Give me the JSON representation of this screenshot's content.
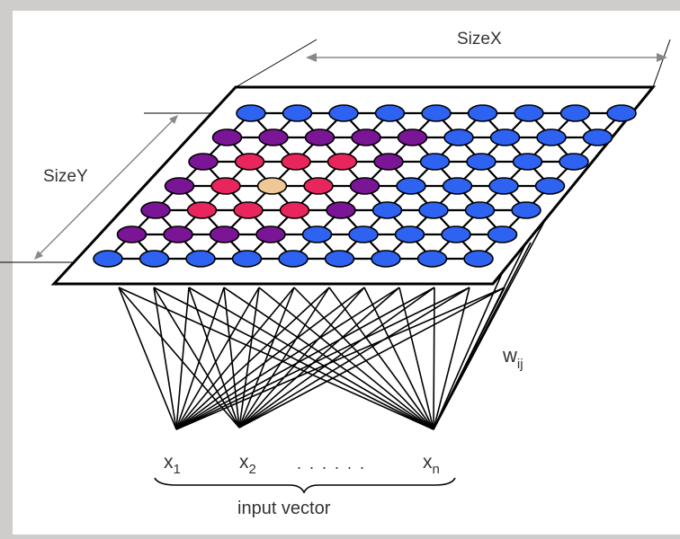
{
  "labels": {
    "size_x": "SizeX",
    "size_y": "SizeY",
    "weight": "w",
    "weight_sub": "ij",
    "caption": "input vector",
    "dots": "......"
  },
  "inputs": [
    {
      "name": "x",
      "sub": "1"
    },
    {
      "name": "x",
      "sub": "2"
    },
    {
      "name": "x",
      "sub": "n"
    }
  ],
  "grid": {
    "columns": 9,
    "rows": 7,
    "bmu": {
      "row": 3,
      "col": 3
    },
    "row_colors": [
      [
        "blue",
        "blue",
        "blue",
        "blue",
        "blue",
        "blue",
        "blue",
        "blue",
        "blue"
      ],
      [
        "purple",
        "purple",
        "purple",
        "purple",
        "purple",
        "blue",
        "blue",
        "blue",
        "blue"
      ],
      [
        "purple",
        "red",
        "red",
        "red",
        "purple",
        "blue",
        "blue",
        "blue",
        "blue"
      ],
      [
        "purple",
        "red",
        "tan",
        "red",
        "purple",
        "blue",
        "blue",
        "blue",
        "blue"
      ],
      [
        "purple",
        "red",
        "red",
        "red",
        "purple",
        "blue",
        "blue",
        "blue",
        "blue"
      ],
      [
        "purple",
        "purple",
        "purple",
        "purple",
        "blue",
        "blue",
        "blue",
        "blue",
        "blue"
      ],
      [
        "blue",
        "blue",
        "blue",
        "blue",
        "blue",
        "blue",
        "blue",
        "blue",
        "blue"
      ]
    ]
  },
  "colors": {
    "background": "#cfcccc",
    "panel": "#ffffff",
    "blue": "#2e62f0",
    "purple": "#7a1596",
    "red": "#e8255c",
    "tan": "#f0c896",
    "lines": "#000000",
    "dimension": "#888888"
  }
}
